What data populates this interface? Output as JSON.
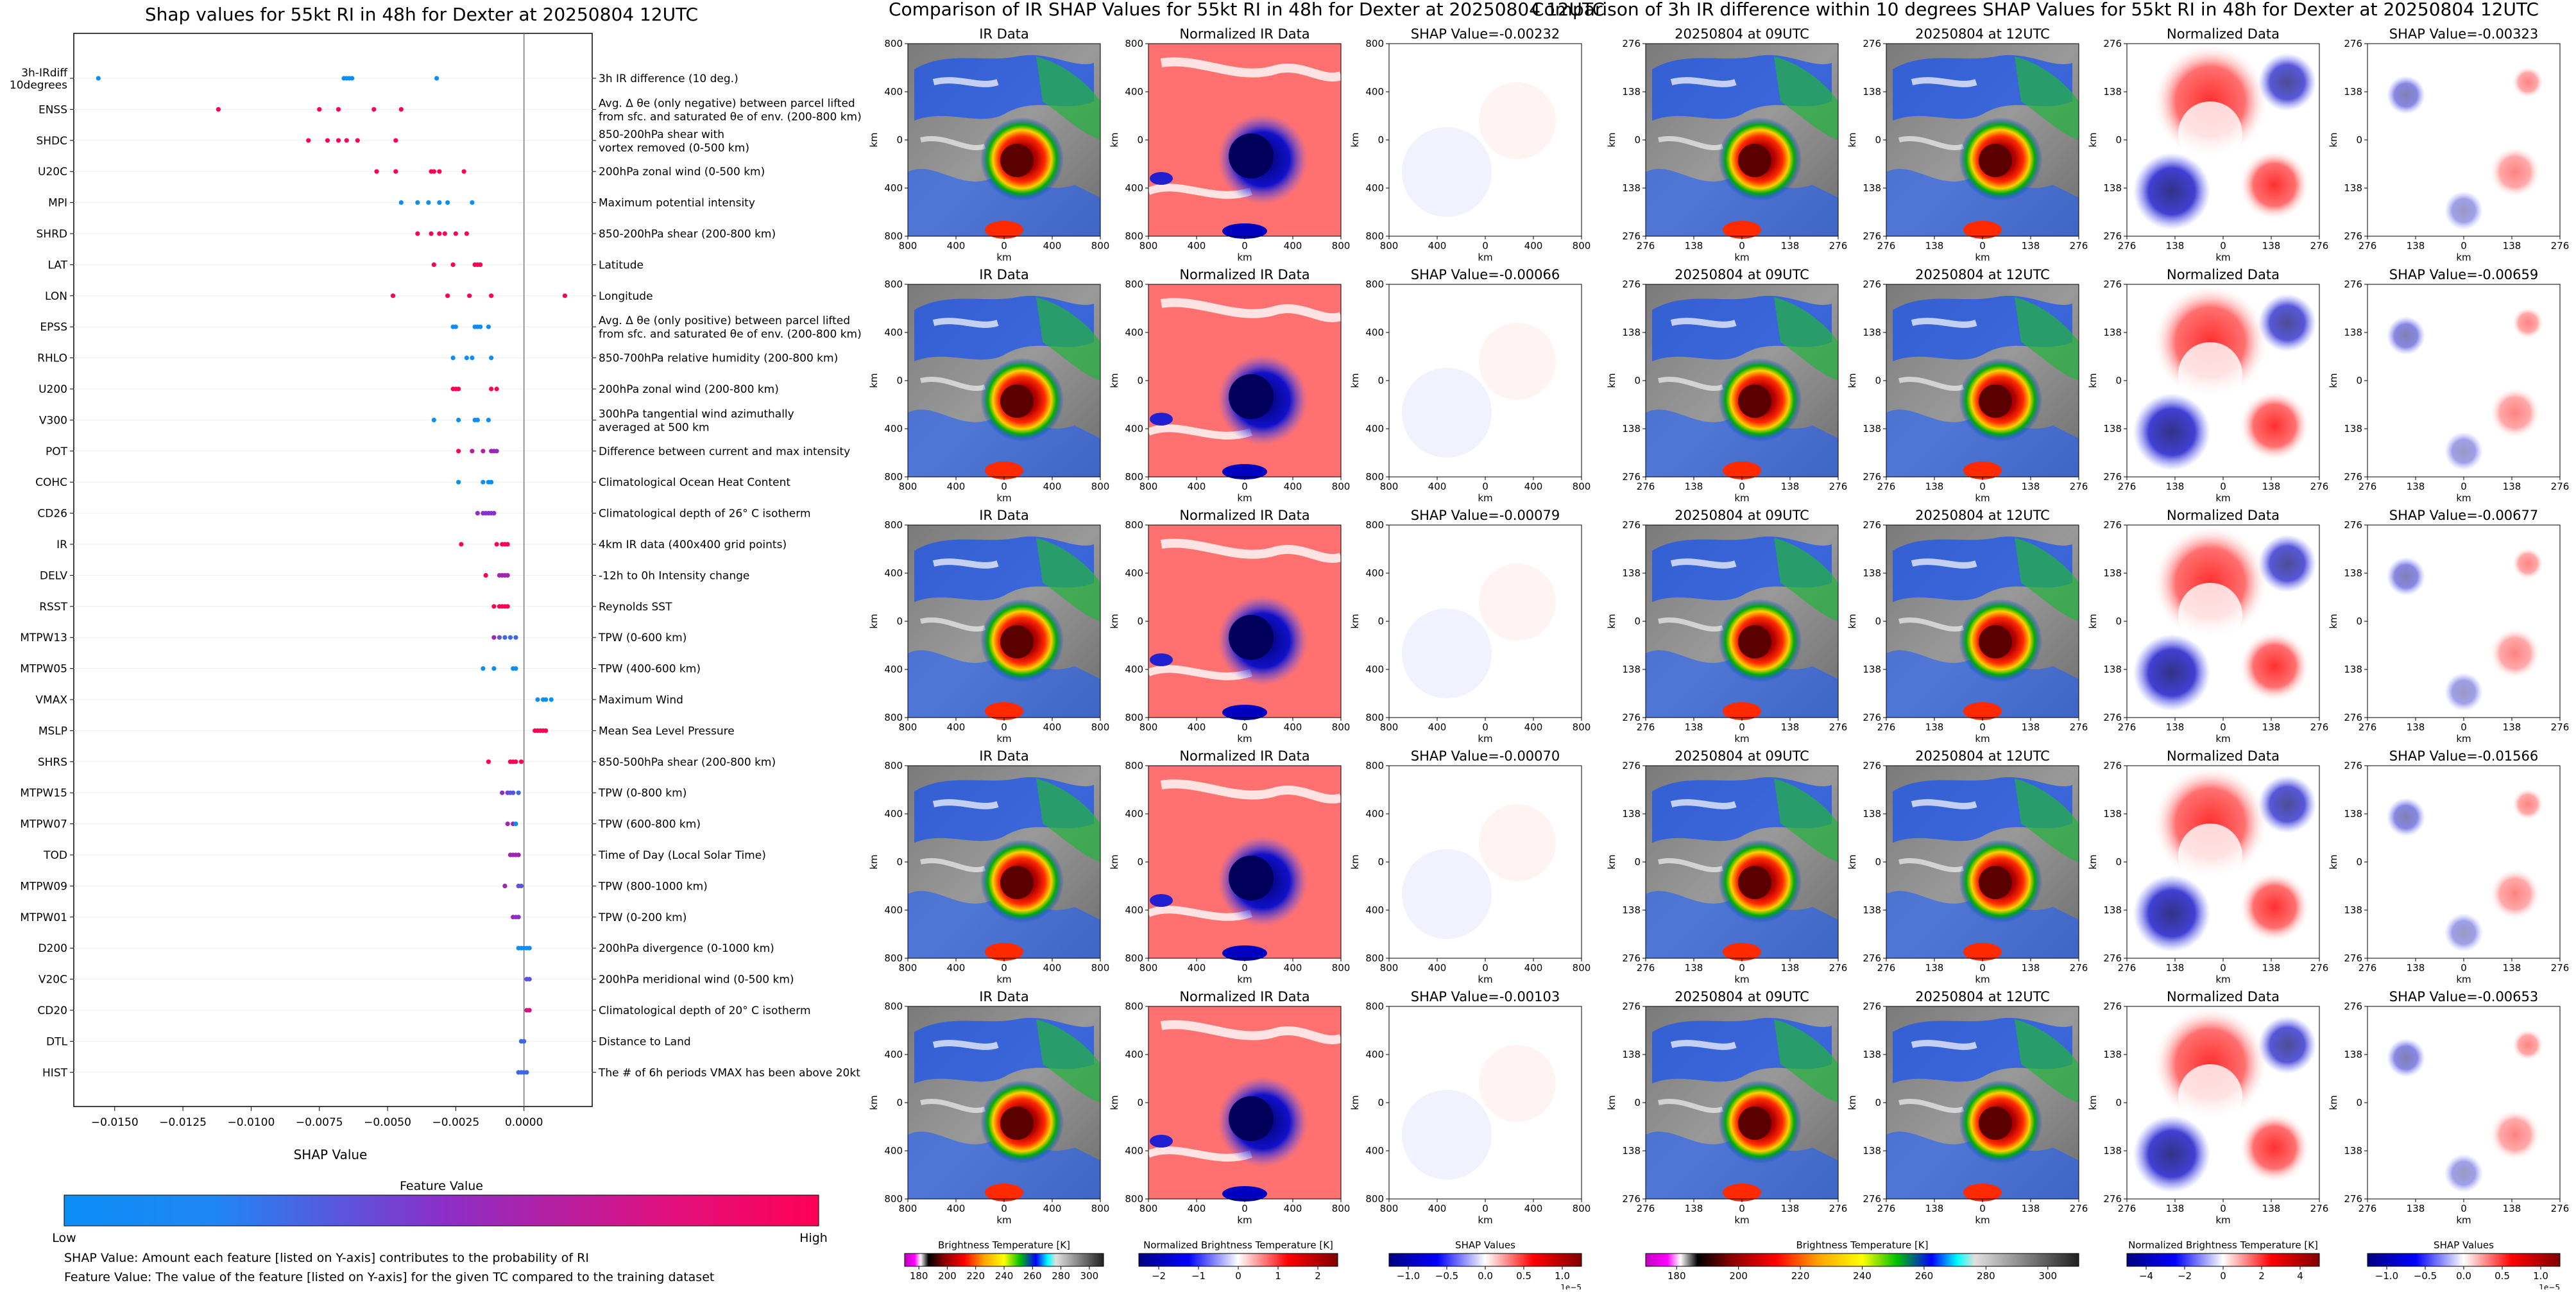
{
  "shap": {
    "title": "Shap values for 55kt RI in 48h for Dexter at 20250804 12UTC",
    "xlabel": "SHAP Value",
    "colorbar_label": "Feature Value",
    "low": "Low",
    "high": "High",
    "note1": "SHAP Value: Amount each feature [listed on Y-axis] contributes to the probability of RI",
    "note2": "Feature Value: The value of the feature [listed on Y-axis] for the given TC compared to the training dataset"
  },
  "mid_title": "Comparison of IR SHAP Values for 55kt RI in 48h for Dexter at 20250804 12UTC",
  "right_title": "Comparison of 3h IR difference within 10 degrees SHAP Values for 55kt RI in 48h for Dexter at 20250804 12UTC",
  "panels": {
    "ir": "IR Data",
    "norm_ir": "Normalized IR Data",
    "t09": "20250804 at 09UTC",
    "t12": "20250804 at 12UTC",
    "norm": "Normalized Data",
    "km": "km"
  },
  "mid_shap_titles": [
    "SHAP Value=-0.00232",
    "SHAP Value=-0.00066",
    "SHAP Value=-0.00079",
    "SHAP Value=-0.00070",
    "SHAP Value=-0.00103"
  ],
  "right_shap_titles": [
    "SHAP Value=-0.00323",
    "SHAP Value=-0.00659",
    "SHAP Value=-0.00677",
    "SHAP Value=-0.01566",
    "SHAP Value=-0.00653"
  ],
  "ticks_800": [
    "800",
    "400",
    "0",
    "400",
    "800"
  ],
  "ticks_276": [
    "276",
    "138",
    "0",
    "138",
    "276"
  ],
  "colorbars": {
    "bt": {
      "label": "Brightness Temperature [K]",
      "ticks": [
        "180",
        "200",
        "220",
        "240",
        "260",
        "280",
        "300"
      ]
    },
    "nbt": {
      "label": "Normalized Brightness Temperature [K]",
      "ticks": [
        "−2",
        "−1",
        "0",
        "1",
        "2"
      ]
    },
    "shap": {
      "label": "SHAP Values",
      "ticks": [
        "−1.0",
        "−0.5",
        "0.0",
        "0.5",
        "1.0"
      ],
      "exp": "1e−5"
    },
    "bt2": {
      "label": "Brightness Temperature [K]",
      "ticks": [
        "180",
        "200",
        "220",
        "240",
        "260",
        "280",
        "300"
      ]
    },
    "nbt2": {
      "label": "Normalized Brightness Temperature [K]",
      "ticks": [
        "−4",
        "−2",
        "0",
        "2",
        "4"
      ]
    },
    "shap2": {
      "label": "SHAP Values",
      "ticks": [
        "−1.0",
        "−0.5",
        "0.0",
        "0.5",
        "1.0"
      ],
      "exp": "1e−5"
    }
  },
  "chart_data": {
    "type": "scatter",
    "title": "Shap values for 55kt RI in 48h for Dexter at 20250804 12UTC",
    "xlabel": "SHAP Value",
    "xlim": [
      -0.0165,
      0.0025
    ],
    "xticks": [
      -0.015,
      -0.0125,
      -0.01,
      -0.0075,
      -0.005,
      -0.0025,
      0.0
    ],
    "xtick_labels": [
      "−0.0150",
      "−0.0125",
      "−0.0100",
      "−0.0075",
      "−0.0050",
      "−0.0025",
      "0.0000"
    ],
    "features": [
      {
        "name": "3h-IRdiff\n10degrees",
        "desc": "3h IR difference (10 deg.)",
        "points": [
          [
            -0.0156,
            0.0
          ],
          [
            -0.0066,
            0.0
          ],
          [
            -0.0065,
            0.0
          ],
          [
            -0.0064,
            0.0
          ],
          [
            -0.0063,
            0.0
          ],
          [
            -0.0032,
            0.0
          ]
        ]
      },
      {
        "name": "ENSS",
        "desc": "Avg. Δ θe (only negative) between parcel lifted\nfrom sfc. and saturated θe of env. (200-800 km)",
        "points": [
          [
            -0.0112,
            1.0
          ],
          [
            -0.0075,
            1.0
          ],
          [
            -0.0068,
            1.0
          ],
          [
            -0.0055,
            1.0
          ],
          [
            -0.0045,
            1.0
          ]
        ]
      },
      {
        "name": "SHDC",
        "desc": "850-200hPa shear with\nvortex removed (0-500 km)",
        "points": [
          [
            -0.0079,
            1.0
          ],
          [
            -0.0072,
            1.0
          ],
          [
            -0.0068,
            1.0
          ],
          [
            -0.0065,
            1.0
          ],
          [
            -0.0061,
            1.0
          ],
          [
            -0.0047,
            1.0
          ]
        ]
      },
      {
        "name": "U20C",
        "desc": "200hPa zonal wind (0-500 km)",
        "points": [
          [
            -0.0054,
            1.0
          ],
          [
            -0.0047,
            1.0
          ],
          [
            -0.0034,
            1.0
          ],
          [
            -0.0033,
            1.0
          ],
          [
            -0.0031,
            1.0
          ],
          [
            -0.0022,
            1.0
          ]
        ]
      },
      {
        "name": "MPI",
        "desc": "Maximum potential intensity",
        "points": [
          [
            -0.0045,
            0.0
          ],
          [
            -0.0039,
            0.0
          ],
          [
            -0.0035,
            0.0
          ],
          [
            -0.0031,
            0.0
          ],
          [
            -0.0028,
            0.0
          ],
          [
            -0.0019,
            0.0
          ]
        ]
      },
      {
        "name": "SHRD",
        "desc": "850-200hPa shear (200-800 km)",
        "points": [
          [
            -0.0039,
            1.0
          ],
          [
            -0.0034,
            1.0
          ],
          [
            -0.0031,
            1.0
          ],
          [
            -0.0029,
            1.0
          ],
          [
            -0.0025,
            1.0
          ],
          [
            -0.0021,
            1.0
          ]
        ]
      },
      {
        "name": "LAT",
        "desc": "Latitude",
        "points": [
          [
            -0.0033,
            1.0
          ],
          [
            -0.0026,
            1.0
          ],
          [
            -0.0018,
            1.0
          ],
          [
            -0.0017,
            1.0
          ],
          [
            -0.0016,
            1.0
          ]
        ]
      },
      {
        "name": "LON",
        "desc": "Longitude",
        "points": [
          [
            -0.0048,
            1.0
          ],
          [
            -0.0028,
            1.0
          ],
          [
            -0.002,
            1.0
          ],
          [
            -0.0012,
            1.0
          ],
          [
            0.0015,
            1.0
          ]
        ]
      },
      {
        "name": "EPSS",
        "desc": "Avg. Δ θe (only positive) between parcel lifted\nfrom sfc. and saturated θe of env. (200-800 km)",
        "points": [
          [
            -0.0026,
            0.0
          ],
          [
            -0.0025,
            0.0
          ],
          [
            -0.0018,
            0.0
          ],
          [
            -0.0017,
            0.0
          ],
          [
            -0.0016,
            0.0
          ],
          [
            -0.0013,
            0.0
          ]
        ]
      },
      {
        "name": "RHLO",
        "desc": "850-700hPa relative humidity (200-800 km)",
        "points": [
          [
            -0.0026,
            0.0
          ],
          [
            -0.0021,
            0.0
          ],
          [
            -0.0019,
            0.0
          ],
          [
            -0.0012,
            0.0
          ]
        ]
      },
      {
        "name": "U200",
        "desc": "200hPa zonal wind (200-800 km)",
        "points": [
          [
            -0.0026,
            1.0
          ],
          [
            -0.0025,
            1.0
          ],
          [
            -0.0024,
            1.0
          ],
          [
            -0.0012,
            1.0
          ],
          [
            -0.001,
            1.0
          ]
        ]
      },
      {
        "name": "V300",
        "desc": "300hPa tangential wind azimuthally\naveraged at 500 km",
        "points": [
          [
            -0.0033,
            0.0
          ],
          [
            -0.0024,
            0.0
          ],
          [
            -0.0018,
            0.0
          ],
          [
            -0.0017,
            0.0
          ],
          [
            -0.0013,
            0.0
          ]
        ]
      },
      {
        "name": "POT",
        "desc": "Difference between current and max intensity",
        "points": [
          [
            -0.0024,
            1.0
          ],
          [
            -0.0019,
            0.7
          ],
          [
            -0.0015,
            0.7
          ],
          [
            -0.0012,
            0.6
          ],
          [
            -0.0011,
            0.6
          ],
          [
            -0.001,
            0.5
          ]
        ]
      },
      {
        "name": "COHC",
        "desc": "Climatological Ocean Heat Content",
        "points": [
          [
            -0.0024,
            0.0
          ],
          [
            -0.0015,
            0.0
          ],
          [
            -0.0013,
            0.0
          ],
          [
            -0.0012,
            0.0
          ]
        ]
      },
      {
        "name": "CD26",
        "desc": "Climatological depth of 26° C isotherm",
        "points": [
          [
            -0.0017,
            0.5
          ],
          [
            -0.0015,
            0.5
          ],
          [
            -0.0014,
            0.5
          ],
          [
            -0.0013,
            0.5
          ],
          [
            -0.0012,
            0.5
          ],
          [
            -0.0011,
            0.5
          ]
        ]
      },
      {
        "name": "IR",
        "desc": "4km IR data (400x400 grid points)",
        "points": [
          [
            -0.0023,
            1.0
          ],
          [
            -0.001,
            1.0
          ],
          [
            -0.0008,
            1.0
          ],
          [
            -0.0007,
            1.0
          ],
          [
            -0.0006,
            1.0
          ]
        ]
      },
      {
        "name": "DELV",
        "desc": "-12h to 0h Intensity change",
        "points": [
          [
            -0.0014,
            1.0
          ],
          [
            -0.0009,
            0.6
          ],
          [
            -0.0008,
            0.6
          ],
          [
            -0.0007,
            0.6
          ],
          [
            -0.0006,
            0.6
          ]
        ]
      },
      {
        "name": "RSST",
        "desc": "Reynolds SST",
        "points": [
          [
            -0.0011,
            1.0
          ],
          [
            -0.0009,
            1.0
          ],
          [
            -0.0008,
            1.0
          ],
          [
            -0.0007,
            1.0
          ],
          [
            -0.0006,
            1.0
          ]
        ]
      },
      {
        "name": "MTPW13",
        "desc": "TPW (0-600 km)",
        "points": [
          [
            -0.0011,
            0.6
          ],
          [
            -0.0009,
            0.3
          ],
          [
            -0.0007,
            0.2
          ],
          [
            -0.0005,
            0.2
          ],
          [
            -0.0003,
            0.2
          ]
        ]
      },
      {
        "name": "MTPW05",
        "desc": "TPW (400-600 km)",
        "points": [
          [
            -0.0015,
            0.0
          ],
          [
            -0.0011,
            0.0
          ],
          [
            -0.0004,
            0.0
          ],
          [
            -0.0003,
            0.0
          ]
        ]
      },
      {
        "name": "VMAX",
        "desc": "Maximum Wind",
        "points": [
          [
            0.0005,
            0.0
          ],
          [
            0.0007,
            0.0
          ],
          [
            0.0008,
            0.0
          ],
          [
            0.001,
            0.0
          ]
        ]
      },
      {
        "name": "MSLP",
        "desc": "Mean Sea Level Pressure",
        "points": [
          [
            0.0004,
            1.0
          ],
          [
            0.0005,
            1.0
          ],
          [
            0.0006,
            1.0
          ],
          [
            0.0007,
            1.0
          ],
          [
            0.0008,
            1.0
          ]
        ]
      },
      {
        "name": "SHRS",
        "desc": "850-500hPa shear (200-800 km)",
        "points": [
          [
            -0.0013,
            1.0
          ],
          [
            -0.0005,
            1.0
          ],
          [
            -0.0004,
            1.0
          ],
          [
            -0.0003,
            1.0
          ],
          [
            -0.0001,
            1.0
          ]
        ]
      },
      {
        "name": "MTPW15",
        "desc": "TPW (0-800 km)",
        "points": [
          [
            -0.0008,
            0.5
          ],
          [
            -0.0006,
            0.4
          ],
          [
            -0.0005,
            0.3
          ],
          [
            -0.0004,
            0.3
          ],
          [
            -0.0002,
            0.2
          ]
        ]
      },
      {
        "name": "MTPW07",
        "desc": "TPW (600-800 km)",
        "points": [
          [
            -0.0006,
            0.6
          ],
          [
            -0.0004,
            0.6
          ],
          [
            -0.0003,
            0.0
          ]
        ]
      },
      {
        "name": "TOD",
        "desc": "Time of Day (Local Solar Time)",
        "points": [
          [
            -0.0005,
            0.6
          ],
          [
            -0.0004,
            0.6
          ],
          [
            -0.0003,
            0.6
          ],
          [
            -0.0002,
            0.6
          ]
        ]
      },
      {
        "name": "MTPW09",
        "desc": "TPW (800-1000 km)",
        "points": [
          [
            -0.0007,
            0.6
          ],
          [
            -0.0002,
            0.3
          ],
          [
            -0.0001,
            0.3
          ]
        ]
      },
      {
        "name": "MTPW01",
        "desc": "TPW (0-200 km)",
        "points": [
          [
            -0.0004,
            0.6
          ],
          [
            -0.0003,
            0.5
          ],
          [
            -0.0002,
            0.5
          ]
        ]
      },
      {
        "name": "D200",
        "desc": "200hPa divergence (0-1000 km)",
        "points": [
          [
            -0.0002,
            0.0
          ],
          [
            -0.0001,
            0.0
          ],
          [
            0.0,
            0.0
          ],
          [
            0.0001,
            0.0
          ],
          [
            0.0002,
            0.0
          ]
        ]
      },
      {
        "name": "V20C",
        "desc": "200hPa meridional wind (0-500 km)",
        "points": [
          [
            0.0001,
            0.3
          ],
          [
            0.0002,
            0.3
          ]
        ]
      },
      {
        "name": "CD20",
        "desc": "Climatological depth of 20° C isotherm",
        "points": [
          [
            0.0001,
            0.8
          ],
          [
            0.0002,
            0.8
          ]
        ]
      },
      {
        "name": "DTL",
        "desc": "Distance to Land",
        "points": [
          [
            -0.0001,
            0.2
          ],
          [
            0.0,
            0.2
          ]
        ]
      },
      {
        "name": "HIST",
        "desc": "The # of 6h periods VMAX has been above 20kt",
        "points": [
          [
            -0.0002,
            0.2
          ],
          [
            -0.0001,
            0.2
          ],
          [
            0.0,
            0.2
          ],
          [
            0.0001,
            0.2
          ]
        ]
      }
    ]
  }
}
